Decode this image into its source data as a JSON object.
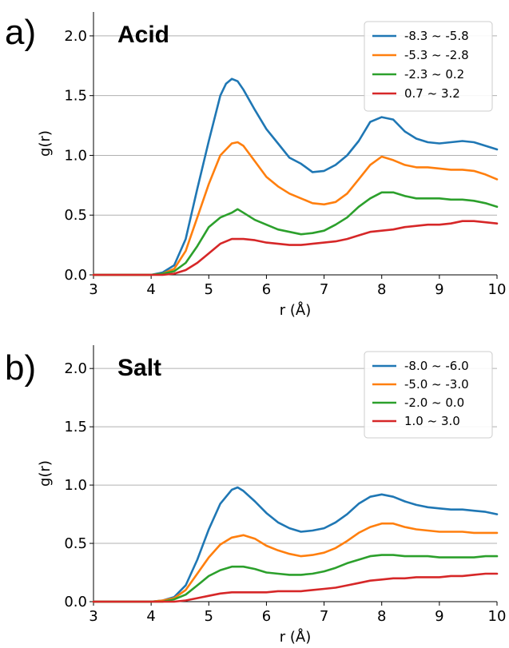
{
  "chart_data": [
    {
      "type": "line",
      "panel_label": "a)",
      "title": "Acid",
      "xlabel": "r (Å)",
      "ylabel": "g(r)",
      "xlim": [
        3,
        10
      ],
      "ylim": [
        0,
        2.2
      ],
      "xticks": [
        "3",
        "4",
        "5",
        "6",
        "7",
        "8",
        "9",
        "10"
      ],
      "yticks": [
        "0.0",
        "0.5",
        "1.0",
        "1.5",
        "2.0"
      ],
      "grid": "horizontal",
      "legend_position": "top-right",
      "series": [
        {
          "name": "-8.3 ~ -5.8",
          "color": "#1f77b4",
          "x": [
            3.0,
            4.0,
            4.2,
            4.4,
            4.6,
            4.8,
            5.0,
            5.2,
            5.3,
            5.4,
            5.5,
            5.6,
            5.8,
            6.0,
            6.2,
            6.4,
            6.6,
            6.8,
            7.0,
            7.2,
            7.4,
            7.6,
            7.8,
            8.0,
            8.2,
            8.4,
            8.6,
            8.8,
            9.0,
            9.2,
            9.4,
            9.6,
            9.8,
            10.0
          ],
          "y": [
            0.0,
            0.0,
            0.02,
            0.08,
            0.3,
            0.72,
            1.12,
            1.5,
            1.6,
            1.64,
            1.62,
            1.55,
            1.38,
            1.22,
            1.1,
            0.98,
            0.93,
            0.86,
            0.87,
            0.92,
            1.0,
            1.12,
            1.28,
            1.32,
            1.3,
            1.2,
            1.14,
            1.11,
            1.1,
            1.11,
            1.12,
            1.11,
            1.08,
            1.05
          ]
        },
        {
          "name": "-5.3 ~ -2.8",
          "color": "#ff7f0e",
          "x": [
            3.0,
            4.0,
            4.2,
            4.4,
            4.6,
            4.8,
            5.0,
            5.2,
            5.4,
            5.5,
            5.6,
            5.8,
            6.0,
            6.2,
            6.4,
            6.6,
            6.8,
            7.0,
            7.2,
            7.4,
            7.6,
            7.8,
            8.0,
            8.2,
            8.4,
            8.6,
            8.8,
            9.0,
            9.2,
            9.4,
            9.6,
            9.8,
            10.0
          ],
          "y": [
            0.0,
            0.0,
            0.01,
            0.05,
            0.2,
            0.48,
            0.76,
            1.0,
            1.1,
            1.11,
            1.08,
            0.95,
            0.82,
            0.74,
            0.68,
            0.64,
            0.6,
            0.59,
            0.61,
            0.68,
            0.8,
            0.92,
            0.99,
            0.96,
            0.92,
            0.9,
            0.9,
            0.89,
            0.88,
            0.88,
            0.87,
            0.84,
            0.8
          ]
        },
        {
          "name": "-2.3 ~ 0.2",
          "color": "#2ca02c",
          "x": [
            3.0,
            4.0,
            4.2,
            4.4,
            4.6,
            4.8,
            5.0,
            5.2,
            5.4,
            5.5,
            5.6,
            5.8,
            6.0,
            6.2,
            6.4,
            6.6,
            6.8,
            7.0,
            7.2,
            7.4,
            7.6,
            7.8,
            8.0,
            8.2,
            8.4,
            8.6,
            8.8,
            9.0,
            9.2,
            9.4,
            9.6,
            9.8,
            10.0
          ],
          "y": [
            0.0,
            0.0,
            0.01,
            0.03,
            0.1,
            0.24,
            0.4,
            0.48,
            0.52,
            0.55,
            0.52,
            0.46,
            0.42,
            0.38,
            0.36,
            0.34,
            0.35,
            0.37,
            0.42,
            0.48,
            0.57,
            0.64,
            0.69,
            0.69,
            0.66,
            0.64,
            0.64,
            0.64,
            0.63,
            0.63,
            0.62,
            0.6,
            0.57
          ]
        },
        {
          "name": "0.7 ~ 3.2",
          "color": "#d62728",
          "x": [
            3.0,
            4.0,
            4.2,
            4.4,
            4.6,
            4.8,
            5.0,
            5.2,
            5.4,
            5.6,
            5.8,
            6.0,
            6.2,
            6.4,
            6.6,
            6.8,
            7.0,
            7.2,
            7.4,
            7.6,
            7.8,
            8.0,
            8.2,
            8.4,
            8.6,
            8.8,
            9.0,
            9.2,
            9.4,
            9.6,
            9.8,
            10.0
          ],
          "y": [
            0.0,
            0.0,
            0.0,
            0.01,
            0.04,
            0.1,
            0.18,
            0.26,
            0.3,
            0.3,
            0.29,
            0.27,
            0.26,
            0.25,
            0.25,
            0.26,
            0.27,
            0.28,
            0.3,
            0.33,
            0.36,
            0.37,
            0.38,
            0.4,
            0.41,
            0.42,
            0.42,
            0.43,
            0.45,
            0.45,
            0.44,
            0.43
          ]
        }
      ]
    },
    {
      "type": "line",
      "panel_label": "b)",
      "title": "Salt",
      "xlabel": "r (Å)",
      "ylabel": "g(r)",
      "xlim": [
        3,
        10
      ],
      "ylim": [
        0,
        2.2
      ],
      "xticks": [
        "3",
        "4",
        "5",
        "6",
        "7",
        "8",
        "9",
        "10"
      ],
      "yticks": [
        "0.0",
        "0.5",
        "1.0",
        "1.5",
        "2.0"
      ],
      "grid": "horizontal",
      "legend_position": "top-right",
      "series": [
        {
          "name": "-8.0 ~ -6.0",
          "color": "#1f77b4",
          "x": [
            3.0,
            4.0,
            4.2,
            4.4,
            4.6,
            4.8,
            5.0,
            5.2,
            5.4,
            5.5,
            5.6,
            5.8,
            6.0,
            6.2,
            6.4,
            6.6,
            6.8,
            7.0,
            7.2,
            7.4,
            7.6,
            7.8,
            8.0,
            8.2,
            8.4,
            8.6,
            8.8,
            9.0,
            9.2,
            9.4,
            9.6,
            9.8,
            10.0
          ],
          "y": [
            0.0,
            0.0,
            0.01,
            0.04,
            0.14,
            0.36,
            0.62,
            0.84,
            0.96,
            0.98,
            0.95,
            0.86,
            0.76,
            0.68,
            0.63,
            0.6,
            0.61,
            0.63,
            0.68,
            0.75,
            0.84,
            0.9,
            0.92,
            0.9,
            0.86,
            0.83,
            0.81,
            0.8,
            0.79,
            0.79,
            0.78,
            0.77,
            0.75
          ]
        },
        {
          "name": "-5.0 ~ -3.0",
          "color": "#ff7f0e",
          "x": [
            3.0,
            4.0,
            4.2,
            4.4,
            4.6,
            4.8,
            5.0,
            5.2,
            5.4,
            5.6,
            5.8,
            6.0,
            6.2,
            6.4,
            6.6,
            6.8,
            7.0,
            7.2,
            7.4,
            7.6,
            7.8,
            8.0,
            8.2,
            8.4,
            8.6,
            8.8,
            9.0,
            9.2,
            9.4,
            9.6,
            9.8,
            10.0
          ],
          "y": [
            0.0,
            0.0,
            0.01,
            0.03,
            0.1,
            0.24,
            0.38,
            0.49,
            0.55,
            0.57,
            0.54,
            0.48,
            0.44,
            0.41,
            0.39,
            0.4,
            0.42,
            0.46,
            0.52,
            0.59,
            0.64,
            0.67,
            0.67,
            0.64,
            0.62,
            0.61,
            0.6,
            0.6,
            0.6,
            0.59,
            0.59,
            0.59
          ]
        },
        {
          "name": "-2.0 ~ 0.0",
          "color": "#2ca02c",
          "x": [
            3.0,
            4.0,
            4.2,
            4.4,
            4.6,
            4.8,
            5.0,
            5.2,
            5.4,
            5.6,
            5.8,
            6.0,
            6.2,
            6.4,
            6.6,
            6.8,
            7.0,
            7.2,
            7.4,
            7.6,
            7.8,
            8.0,
            8.2,
            8.4,
            8.6,
            8.8,
            9.0,
            9.2,
            9.4,
            9.6,
            9.8,
            10.0
          ],
          "y": [
            0.0,
            0.0,
            0.0,
            0.02,
            0.06,
            0.14,
            0.22,
            0.27,
            0.3,
            0.3,
            0.28,
            0.25,
            0.24,
            0.23,
            0.23,
            0.24,
            0.26,
            0.29,
            0.33,
            0.36,
            0.39,
            0.4,
            0.4,
            0.39,
            0.39,
            0.39,
            0.38,
            0.38,
            0.38,
            0.38,
            0.39,
            0.39
          ]
        },
        {
          "name": "1.0 ~ 3.0",
          "color": "#d62728",
          "x": [
            3.0,
            4.0,
            4.4,
            4.6,
            4.8,
            5.0,
            5.2,
            5.4,
            5.6,
            5.8,
            6.0,
            6.2,
            6.4,
            6.6,
            6.8,
            7.0,
            7.2,
            7.4,
            7.6,
            7.8,
            8.0,
            8.2,
            8.4,
            8.6,
            8.8,
            9.0,
            9.2,
            9.4,
            9.6,
            9.8,
            10.0
          ],
          "y": [
            0.0,
            0.0,
            0.0,
            0.01,
            0.03,
            0.05,
            0.07,
            0.08,
            0.08,
            0.08,
            0.08,
            0.09,
            0.09,
            0.09,
            0.1,
            0.11,
            0.12,
            0.14,
            0.16,
            0.18,
            0.19,
            0.2,
            0.2,
            0.21,
            0.21,
            0.21,
            0.22,
            0.22,
            0.23,
            0.24,
            0.24
          ]
        }
      ]
    }
  ]
}
